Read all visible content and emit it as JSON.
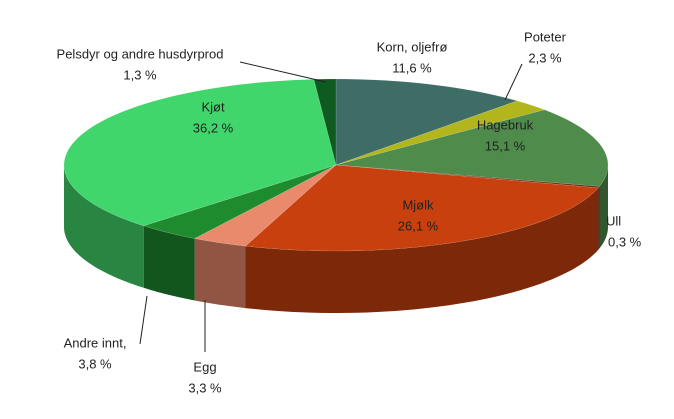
{
  "chart_data": {
    "type": "pie",
    "categories": [
      "Korn, oljefrø",
      "Poteter",
      "Hagebruk",
      "Ull",
      "Mjølk",
      "Egg",
      "Andre innt,",
      "Kjøt",
      "Pelsdyr og andre husdyrprod"
    ],
    "values": [
      11.6,
      2.3,
      15.1,
      0.3,
      26.1,
      3.3,
      3.8,
      36.2,
      1.3
    ],
    "value_labels": [
      "11,6 %",
      "2,3 %",
      "15,1 %",
      "0,3 %",
      "26,1 %",
      "3,3 %",
      "3,8 %",
      "36,2 %",
      "1,3 %"
    ],
    "colors": [
      "#3e6d66",
      "#b3b51c",
      "#4f8c4b",
      "#6b2e12",
      "#c9400f",
      "#e98a6c",
      "#1f8b2f",
      "#40d66b",
      "#0f5a20"
    ]
  }
}
